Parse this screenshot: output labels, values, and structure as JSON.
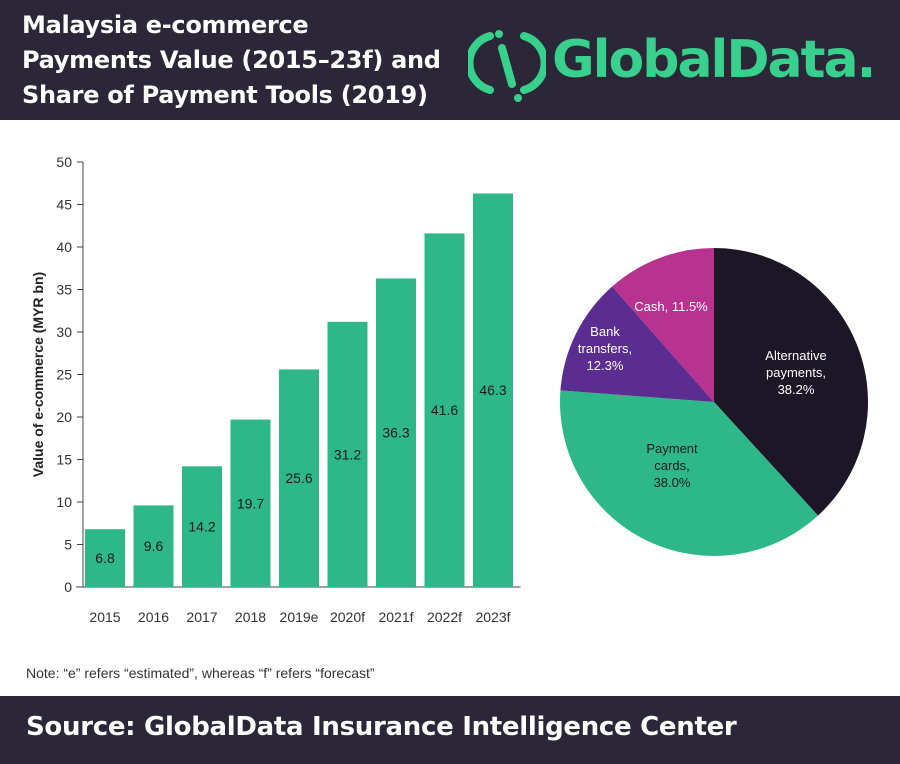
{
  "header": {
    "title_lines": [
      "Malaysia e-commerce",
      "Payments Value (2015–23f) and",
      "Share of Payment Tools (2019)"
    ],
    "logo_text": "GlobalData.",
    "logo_icon": "globaldata-logo-icon",
    "brand_color": "#37d08c",
    "background_color": "#2c2738"
  },
  "chart_data": [
    {
      "type": "bar",
      "categories": [
        "2015",
        "2016",
        "2017",
        "2018",
        "2019e",
        "2020f",
        "2021f",
        "2022f",
        "2023f"
      ],
      "values": [
        6.8,
        9.6,
        14.2,
        19.7,
        25.6,
        31.2,
        36.3,
        41.6,
        46.3
      ],
      "value_labels": [
        "6.8",
        "9.6",
        "14.2",
        "19.7",
        "25.6",
        "31.2",
        "36.3",
        "41.6",
        "46.3"
      ],
      "ylabel": "Value of e-commerce (MYR bn)",
      "ylim": [
        0,
        50
      ],
      "yticks": [
        "0",
        "5",
        "10",
        "15",
        "20",
        "25",
        "30",
        "35",
        "40",
        "45",
        "50"
      ],
      "grid": false,
      "bar_color": "#2eb88a"
    },
    {
      "type": "pie",
      "slices": [
        {
          "label_lines": [
            "Alternative",
            "payments,",
            "38.2%"
          ],
          "value": 38.2,
          "color": "#1c1626",
          "text_color": "#ffffff"
        },
        {
          "label_lines": [
            "Payment",
            "cards,",
            "38.0%"
          ],
          "value": 38.0,
          "color": "#2eb88a",
          "text_color": "#1a1a1a"
        },
        {
          "label_lines": [
            "Bank",
            "transfers,",
            "12.3%"
          ],
          "value": 12.3,
          "color": "#5c2d91",
          "text_color": "#ffffff"
        },
        {
          "label_lines": [
            "Cash, 11.5%"
          ],
          "value": 11.5,
          "color": "#b8338f",
          "text_color": "#ffffff"
        }
      ]
    }
  ],
  "note": "Note: “e” refers “estimated”, whereas “f” refers “forecast”",
  "footer": {
    "source": "Source: GlobalData Insurance Intelligence Center"
  }
}
